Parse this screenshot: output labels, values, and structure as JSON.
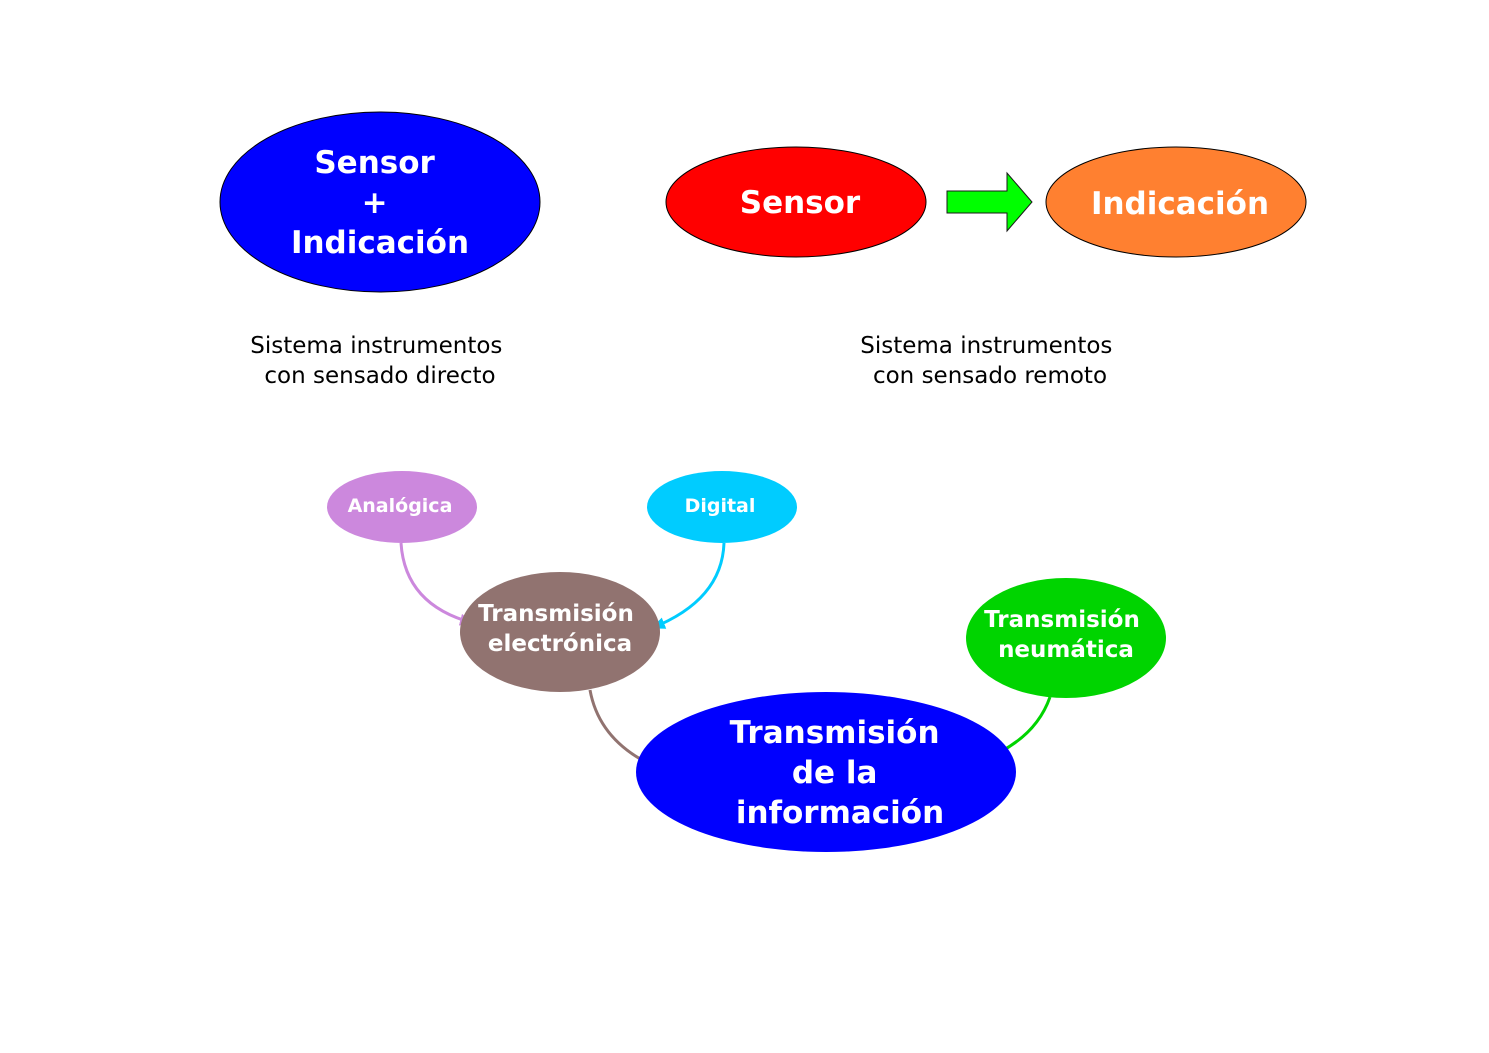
{
  "colors": {
    "background": "#ffffff",
    "direct_node": "#0000ff",
    "sensor": "#ff0000",
    "indicacion": "#ff8030",
    "flow_arrow": "#00ff00",
    "analogica": "#cc88dd",
    "digital": "#00ccff",
    "electronica": "#917370",
    "neumatica": "#00d400",
    "informacion": "#0000ff"
  },
  "top": {
    "direct": {
      "node_lines": [
        "Sensor",
        "+",
        "Indicación"
      ],
      "caption_lines": [
        "Sistema instrumentos",
        "con sensado directo"
      ]
    },
    "remote": {
      "sensor_label": "Sensor",
      "indicacion_label": "Indicación",
      "caption_lines": [
        "Sistema instrumentos",
        "con sensado remoto"
      ]
    }
  },
  "bottom": {
    "analogica": "Analógica",
    "digital": "Digital",
    "electronica_lines": [
      "Transmisión",
      "electrónica"
    ],
    "neumatica_lines": [
      "Transmisión",
      "neumática"
    ],
    "informacion_lines": [
      "Transmisión",
      "de la",
      "información"
    ]
  }
}
